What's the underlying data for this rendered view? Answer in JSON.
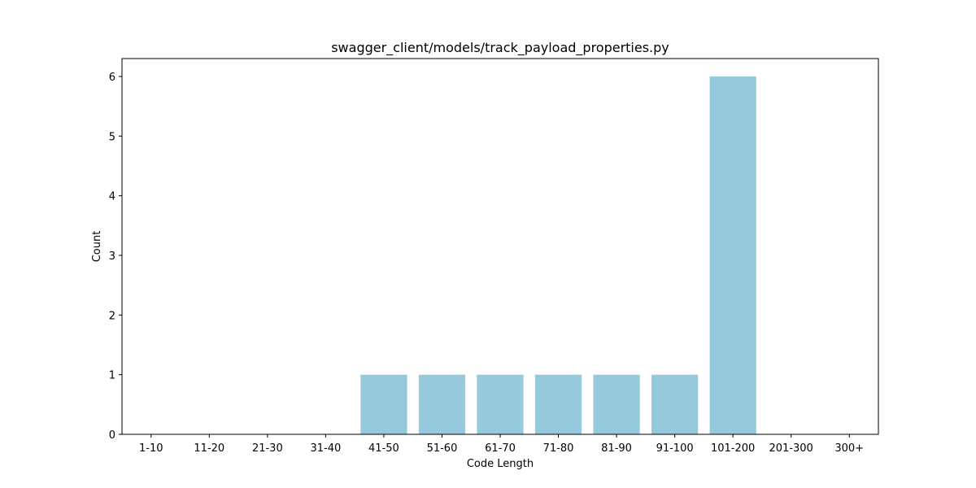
{
  "chart_data": {
    "type": "bar",
    "title": "swagger_client/models/track_payload_properties.py",
    "xlabel": "Code Length",
    "ylabel": "Count",
    "categories": [
      "1-10",
      "11-20",
      "21-30",
      "31-40",
      "41-50",
      "51-60",
      "61-70",
      "71-80",
      "81-90",
      "91-100",
      "101-200",
      "201-300",
      "300+"
    ],
    "values": [
      0,
      0,
      0,
      0,
      1,
      1,
      1,
      1,
      1,
      1,
      6,
      0,
      0
    ],
    "ylim": [
      0,
      6.3
    ],
    "yticks": [
      0,
      1,
      2,
      3,
      4,
      5,
      6
    ],
    "bar_color": "#96c9dc",
    "grid": false,
    "legend": "none"
  }
}
